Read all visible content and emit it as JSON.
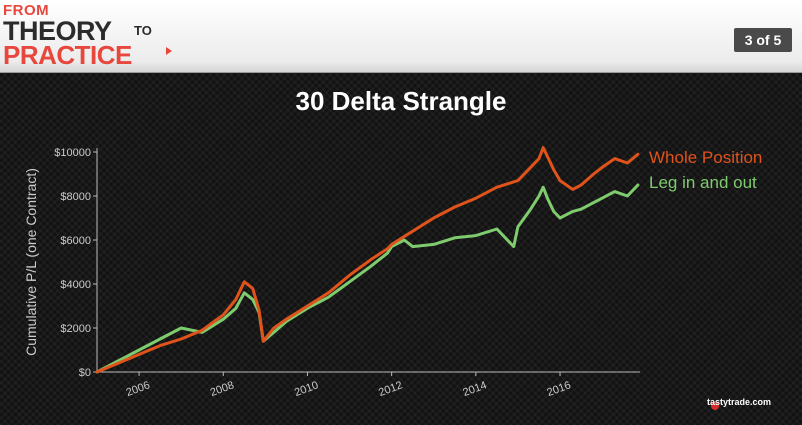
{
  "header": {
    "logo_from": "FROM",
    "logo_theory": "THEORY",
    "logo_to": "TO",
    "logo_practice": "PRACTICE",
    "page_indicator": "3 of 5"
  },
  "footer": {
    "brand": "tastytrade.com"
  },
  "colors": {
    "whole_position": "#e0531a",
    "leg_in_out": "#7fcc6e",
    "text": "#ffffff",
    "axis": "#cccccc"
  },
  "chart_data": {
    "type": "line",
    "title": "30 Delta Strangle",
    "xlabel": "",
    "ylabel": "Cumulative P/L (one Contract)",
    "xlim": [
      2005.0,
      2017.9
    ],
    "ylim": [
      0,
      10000
    ],
    "xticks": [
      2006,
      2008,
      2010,
      2012,
      2014,
      2016
    ],
    "yticks": [
      0,
      2000,
      4000,
      6000,
      8000,
      10000
    ],
    "ytick_labels": [
      "$0",
      "$2000",
      "$4000",
      "$6000",
      "$8000",
      "$10000"
    ],
    "grid": false,
    "legend_position": "top-right",
    "series": [
      {
        "name": "Whole Position",
        "color": "#e0531a",
        "x": [
          2005.0,
          2005.5,
          2006.0,
          2006.5,
          2007.0,
          2007.5,
          2008.0,
          2008.3,
          2008.5,
          2008.7,
          2008.85,
          2008.95,
          2009.2,
          2009.5,
          2010.0,
          2010.5,
          2011.0,
          2011.5,
          2011.9,
          2012.0,
          2012.5,
          2013.0,
          2013.5,
          2014.0,
          2014.5,
          2015.0,
          2015.3,
          2015.5,
          2015.6,
          2015.7,
          2015.85,
          2016.0,
          2016.3,
          2016.5,
          2016.8,
          2017.0,
          2017.3,
          2017.6,
          2017.85
        ],
        "y": [
          0,
          400,
          800,
          1200,
          1500,
          1900,
          2600,
          3300,
          4100,
          3800,
          2800,
          1400,
          2000,
          2400,
          3000,
          3600,
          4400,
          5100,
          5600,
          5800,
          6400,
          7000,
          7500,
          7900,
          8400,
          8700,
          9300,
          9700,
          10200,
          9800,
          9200,
          8700,
          8300,
          8500,
          9000,
          9300,
          9700,
          9500,
          9900
        ]
      },
      {
        "name": "Leg in and out",
        "color": "#7fcc6e",
        "x": [
          2005.0,
          2005.5,
          2006.0,
          2006.5,
          2007.0,
          2007.5,
          2008.0,
          2008.3,
          2008.5,
          2008.7,
          2008.85,
          2008.95,
          2009.2,
          2009.5,
          2010.0,
          2010.5,
          2011.0,
          2011.5,
          2011.9,
          2012.0,
          2012.3,
          2012.5,
          2013.0,
          2013.5,
          2014.0,
          2014.5,
          2014.9,
          2015.0,
          2015.3,
          2015.5,
          2015.6,
          2015.7,
          2015.85,
          2016.0,
          2016.3,
          2016.5,
          2016.8,
          2017.0,
          2017.3,
          2017.6,
          2017.85
        ],
        "y": [
          0,
          500,
          1000,
          1500,
          2000,
          1800,
          2400,
          2900,
          3600,
          3300,
          2700,
          1400,
          1800,
          2300,
          2900,
          3400,
          4100,
          4800,
          5400,
          5700,
          6000,
          5700,
          5800,
          6100,
          6200,
          6500,
          5700,
          6600,
          7400,
          8000,
          8400,
          7900,
          7300,
          7000,
          7300,
          7400,
          7700,
          7900,
          8200,
          8000,
          8500
        ]
      }
    ]
  }
}
